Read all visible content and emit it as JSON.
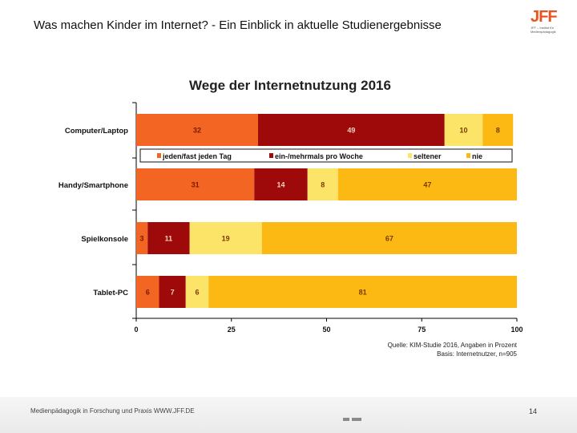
{
  "slide": {
    "title": "Was machen Kinder im Internet? - Ein Einblick in aktuelle Studienergebnisse",
    "logo_text": "JFF",
    "logo_tagline": "JFF – Institut für Medienpädagogik",
    "footer_text": "Medienpädagogik in Forschung und Praxis WWW.JFF.DE",
    "page_number": "14"
  },
  "chart_data": {
    "type": "bar",
    "orientation": "horizontal",
    "stacked": true,
    "title": "Wege der Internetnutzung 2016",
    "categories": [
      "Computer/Laptop",
      "Handy/Smartphone",
      "Spielkonsole",
      "Tablet-PC"
    ],
    "series": [
      {
        "name": "jeden/fast jeden Tag",
        "color": "#f26522",
        "values": [
          32,
          31,
          3,
          6
        ]
      },
      {
        "name": "ein-/mehrmals pro Woche",
        "color": "#9e0a0a",
        "values": [
          49,
          14,
          11,
          7
        ]
      },
      {
        "name": "seltener",
        "color": "#fbe468",
        "values": [
          10,
          8,
          19,
          6
        ]
      },
      {
        "name": "nie",
        "color": "#fdb913",
        "values": [
          8,
          47,
          67,
          81
        ]
      }
    ],
    "xlim": [
      0,
      100
    ],
    "xticks": [
      "0",
      "25",
      "50",
      "75",
      "100"
    ],
    "grid": false,
    "legend": "top (between first and second bar)",
    "source_line1": "Quelle: KIM-Studie 2016, Angaben in Prozent",
    "source_line2": "Basis: Internetnutzer, n=905"
  }
}
